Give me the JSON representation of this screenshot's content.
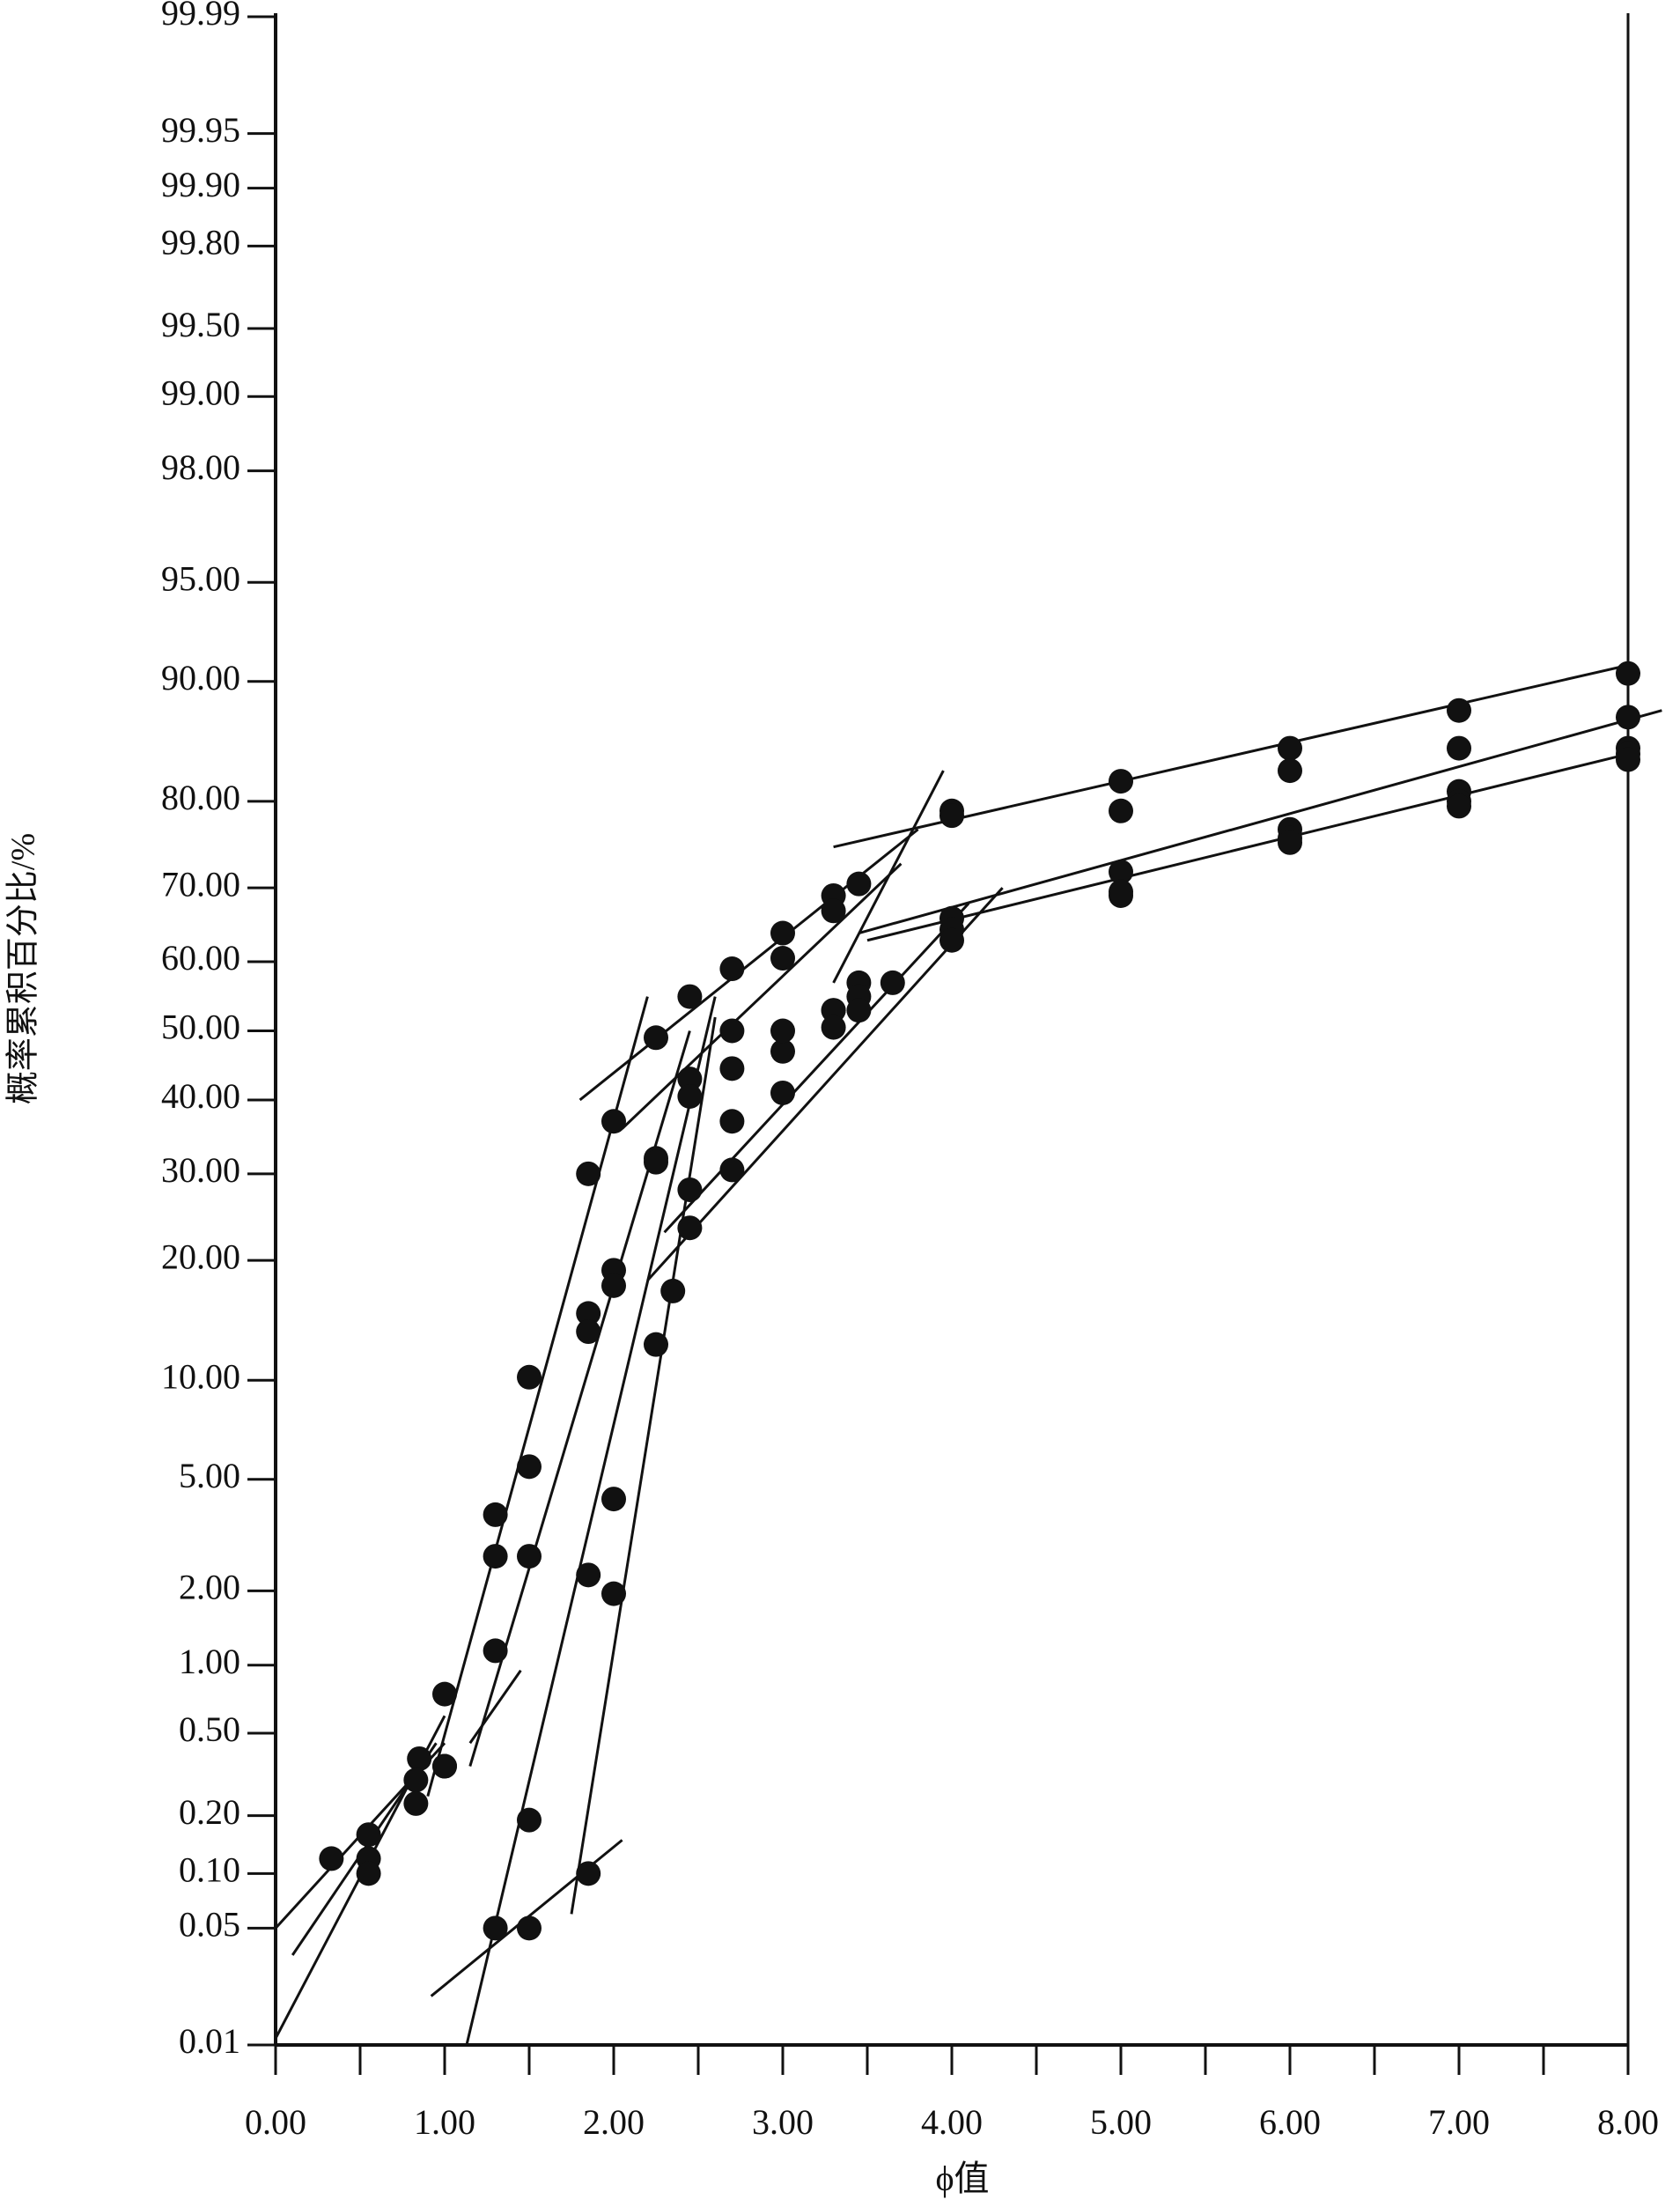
{
  "chart_data": {
    "type": "scatter",
    "ylabel": "概率累积百分比/%",
    "xlabel": "ϕ值",
    "xlim": [
      0,
      8
    ],
    "ylim": [
      0.01,
      99.99
    ],
    "yscale": "probability",
    "xticks": [
      {
        "value": 0,
        "label": "0.00"
      },
      {
        "value": 1,
        "label": "1.00"
      },
      {
        "value": 2,
        "label": "2.00"
      },
      {
        "value": 3,
        "label": "3.00"
      },
      {
        "value": 4,
        "label": "4.00"
      },
      {
        "value": 5,
        "label": "5.00"
      },
      {
        "value": 6,
        "label": "6.00"
      },
      {
        "value": 7,
        "label": "7.00"
      },
      {
        "value": 8,
        "label": "8.00"
      }
    ],
    "xminorticks": [
      0.5,
      1.5,
      2.5,
      3.5,
      4.5,
      5.5,
      6.5,
      7.5
    ],
    "yticks": [
      0.01,
      0.05,
      {
        "value": 0.1,
        "label": "0.10"
      },
      {
        "value": 0.2,
        "label": "0.20"
      },
      {
        "value": 0.5,
        "label": "0.50"
      },
      {
        "value": 1,
        "label": "1.00"
      },
      {
        "value": 2,
        "label": "2.00"
      },
      {
        "value": 5,
        "label": "5.00"
      },
      {
        "value": 10,
        "label": "10.00"
      },
      {
        "value": 20,
        "label": "20.00"
      },
      {
        "value": 30,
        "label": "30.00"
      },
      {
        "value": 40,
        "label": "40.00"
      },
      {
        "value": 50,
        "label": "50.00"
      },
      {
        "value": 60,
        "label": "60.00"
      },
      {
        "value": 70,
        "label": "70.00"
      },
      {
        "value": 80,
        "label": "80.00"
      },
      {
        "value": 90,
        "label": "90.00"
      },
      {
        "value": 95,
        "label": "95.00"
      },
      {
        "value": 98,
        "label": "98.00"
      },
      {
        "value": 99,
        "label": "99.00"
      },
      {
        "value": 99.5,
        "label": "99.50"
      },
      {
        "value": 99.8,
        "label": "99.80"
      },
      {
        "value": 99.9,
        "label": "99.90"
      },
      99.95,
      99.99
    ],
    "series": [
      {
        "color": "#111111",
        "x": [
          0.33,
          0.55,
          0.85,
          1.0,
          1.3,
          1.5,
          1.85,
          2.0,
          2.25,
          2.45,
          2.7,
          3.0,
          3.3,
          3.45,
          4.0,
          5.0,
          6.0,
          7.0,
          8.0
        ],
        "values": [
          0.12,
          0.16,
          0.38,
          0.75,
          3.8,
          10.2,
          30,
          37,
          49,
          55,
          59,
          64,
          69,
          70.5,
          79,
          82,
          85,
          88,
          90.5
        ]
      },
      {
        "color": "#111111",
        "x": [
          0.55,
          0.83,
          1.0,
          1.3,
          1.5,
          1.85,
          2.0,
          2.25,
          2.45,
          2.7,
          3.0,
          3.3,
          4.0,
          5.0,
          6.0,
          7.0,
          8.0
        ],
        "values": [
          0.12,
          0.3,
          0.35,
          2.7,
          5.5,
          15,
          19,
          32,
          43,
          50,
          60.5,
          67,
          78.5,
          79,
          83,
          85,
          87.5
        ]
      },
      {
        "color": "#111111",
        "x": [
          0.55,
          0.83,
          1.0,
          1.3,
          1.5,
          1.85,
          2.0,
          2.25,
          2.45,
          2.7,
          3.0,
          3.3,
          3.45,
          4.0,
          5.0,
          6.0,
          7.0,
          8.0
        ],
        "values": [
          0.1,
          0.23,
          0.35,
          1.15,
          2.7,
          13.5,
          17.5,
          31.5,
          40.5,
          44.5,
          47,
          53,
          57,
          66,
          72,
          77,
          81,
          85
        ]
      },
      {
        "color": "#111111",
        "x": [
          1.3,
          1.5,
          1.85,
          2.0,
          2.35,
          2.45,
          2.7,
          3.0,
          3.3,
          3.45,
          3.65,
          4.0,
          5.0,
          6.0,
          7.0,
          8.0
        ],
        "values": [
          0.05,
          0.19,
          2.3,
          4.3,
          17,
          28,
          37,
          50,
          53,
          55,
          57,
          64.5,
          69,
          76,
          80,
          84.5
        ]
      },
      {
        "color": "#111111",
        "x": [
          1.5,
          1.85,
          2.0,
          2.25,
          2.45,
          2.7,
          3.0,
          3.3,
          3.45,
          4.0,
          5.0,
          6.0,
          7.0,
          8.0
        ],
        "values": [
          0.05,
          0.1,
          1.95,
          12.5,
          23.5,
          30.5,
          41,
          50.5,
          53,
          63,
          69.5,
          75.5,
          79.5,
          84
        ]
      }
    ],
    "lines": [
      {
        "x": [
          0.0,
          1.0
        ],
        "values": [
          0.05,
          0.45
        ]
      },
      {
        "x": [
          0.1,
          0.95
        ],
        "values": [
          0.035,
          0.45
        ]
      },
      {
        "x": [
          0.0,
          1.0
        ],
        "values": [
          0.011,
          0.6
        ]
      },
      {
        "x": [
          0.9,
          2.2
        ],
        "values": [
          0.25,
          55
        ]
      },
      {
        "x": [
          1.15,
          2.45
        ],
        "values": [
          0.35,
          50
        ]
      },
      {
        "x": [
          1.15,
          1.45
        ],
        "values": [
          0.45,
          0.95
        ]
      },
      {
        "x": [
          1.13,
          2.6
        ],
        "values": [
          0.01,
          55
        ]
      },
      {
        "x": [
          1.75,
          2.6
        ],
        "values": [
          0.06,
          52
        ]
      },
      {
        "x": [
          0.92,
          2.05
        ],
        "values": [
          0.02,
          0.15
        ]
      },
      {
        "x": [
          1.8,
          3.8
        ],
        "values": [
          40,
          77
        ]
      },
      {
        "x": [
          2.05,
          3.7
        ],
        "values": [
          36,
          73
        ]
      },
      {
        "x": [
          2.3,
          4.1
        ],
        "values": [
          23,
          68
        ]
      },
      {
        "x": [
          2.2,
          4.3
        ],
        "values": [
          18,
          70
        ]
      },
      {
        "x": [
          3.3,
          3.95
        ],
        "values": [
          57,
          83
        ]
      },
      {
        "x": [
          3.3,
          8.0
        ],
        "values": [
          75,
          91
        ]
      },
      {
        "x": [
          3.45,
          8.2
        ],
        "values": [
          64,
          88
        ]
      },
      {
        "x": [
          3.5,
          8.0
        ],
        "values": [
          63,
          84.5
        ]
      }
    ]
  }
}
